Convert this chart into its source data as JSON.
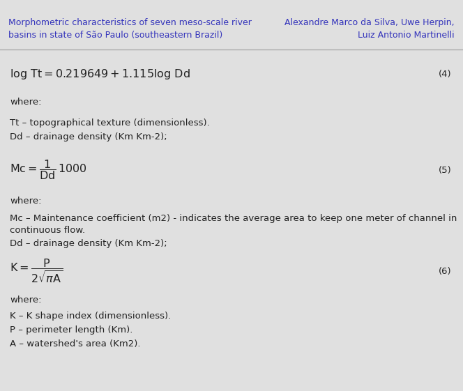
{
  "header_left": "Morphometric characteristics of seven meso-scale river\nbasins in state of São Paulo (southeastern Brazil)",
  "header_right": "Alexandre Marco da Silva, Uwe Herpin,\nLuiz Antonio Martinelli",
  "header_color": "#3333bb",
  "bg_color": "#e0e0e0",
  "text_color": "#222222",
  "sep_color": "#aaaaaa",
  "eq4_label": "(4)",
  "eq5_label": "(5)",
  "eq6_label": "(6)",
  "font_size_header": 9.0,
  "font_size_body": 9.5,
  "font_size_eq": 11.5
}
